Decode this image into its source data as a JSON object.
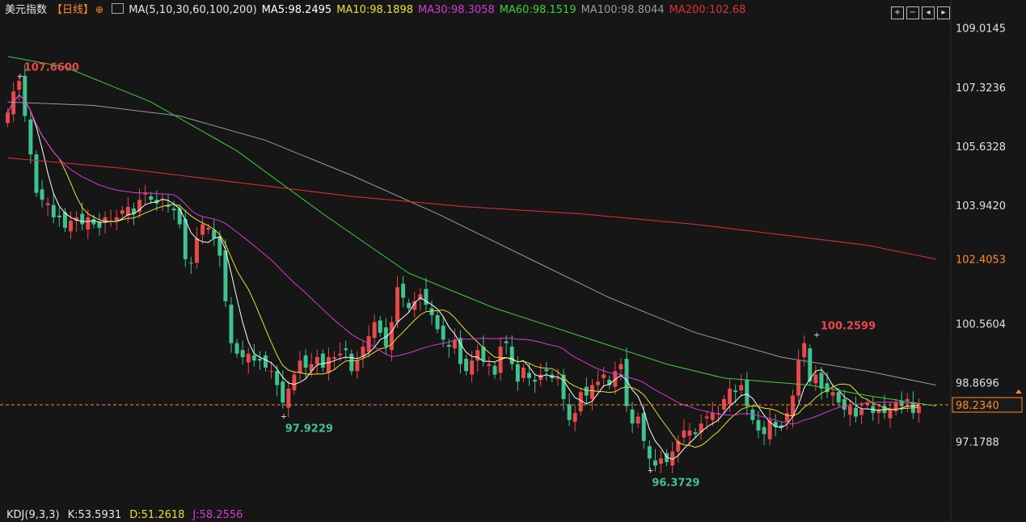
{
  "header": {
    "title": "美元指数",
    "period": "【日线】",
    "add_symbol": "⊕",
    "ma_label": "MA(5,10,30,60,100,200)",
    "ma_values": [
      {
        "label": "MA5:98.2495",
        "color": "#ffffff"
      },
      {
        "label": "MA10:98.1898",
        "color": "#e8e030"
      },
      {
        "label": "MA30:98.3058",
        "color": "#d63ad6"
      },
      {
        "label": "MA60:98.1519",
        "color": "#3bd13b"
      },
      {
        "label": "MA100:98.8044",
        "color": "#9a9a9a"
      },
      {
        "label": "MA200:102.68",
        "color": "#e03030"
      }
    ]
  },
  "toolbar": {
    "buttons": [
      "zoom-in",
      "zoom-out",
      "prev",
      "next"
    ]
  },
  "kdj": {
    "label": "KDJ(9,3,3)",
    "k": "K:53.5931",
    "d": "D:51.2618",
    "j": "J:58.2556"
  },
  "chart_data": {
    "type": "candlestick",
    "y_axis_ticks": [
      "109.0145",
      "107.3236",
      "105.6328",
      "103.9420",
      "102.4053",
      "100.5604",
      "98.8696",
      "98.2340",
      "97.1788"
    ],
    "ylim": [
      95.6,
      109.4
    ],
    "current_price": 98.234,
    "current_price_label": "98.2340",
    "hover_price_label": "102.4053",
    "annotations": [
      {
        "text": "107.6600",
        "index": 2,
        "value": 107.66,
        "color": "#e64a4a"
      },
      {
        "text": "97.9229",
        "index": 48,
        "value": 97.9229,
        "color": "#3ec28f"
      },
      {
        "text": "96.3729",
        "index": 112,
        "value": 96.3729,
        "color": "#3ec28f"
      },
      {
        "text": "100.2599",
        "index": 141,
        "value": 100.2599,
        "color": "#e64a4a"
      }
    ],
    "up_color": "#e64a4a",
    "down_color": "#3ec28f",
    "ma_colors": {
      "ma5": "#ffffff",
      "ma10": "#e8e030",
      "ma30": "#d63ad6",
      "ma60": "#3bd13b",
      "ma100": "#9a9a9a",
      "ma200": "#e03030"
    },
    "closes": [
      106.6,
      107.2,
      107.5,
      106.5,
      105.4,
      104.3,
      104.1,
      104.0,
      103.6,
      103.6,
      103.3,
      103.5,
      103.6,
      103.4,
      103.6,
      103.4,
      103.3,
      103.6,
      103.5,
      103.6,
      103.8,
      103.9,
      103.7,
      104.1,
      104.3,
      104.1,
      104.0,
      104.1,
      103.9,
      103.8,
      103.4,
      102.4,
      102.3,
      103.0,
      103.4,
      103.3,
      103.0,
      102.5,
      101.2,
      100.0,
      99.7,
      99.6,
      99.7,
      99.5,
      99.5,
      99.3,
      99.2,
      98.8,
      98.3,
      98.7,
      99.1,
      99.5,
      99.3,
      99.4,
      99.6,
      99.3,
      99.6,
      99.6,
      99.7,
      99.8,
      99.2,
      99.5,
      99.9,
      100.2,
      100.6,
      100.3,
      99.9,
      100.6,
      101.6,
      101.3,
      101.0,
      101.2,
      101.4,
      101.1,
      100.8,
      100.4,
      100.1,
      99.9,
      100.1,
      99.4,
      99.2,
      99.5,
      99.8,
      99.5,
      99.4,
      99.1,
      99.9,
      100.0,
      99.4,
      98.9,
      99.3,
      99.0,
      98.9,
      99.1,
      99.2,
      99.0,
      99.0,
      98.4,
      97.8,
      98.0,
      98.6,
      98.5,
      98.8,
      98.9,
      99.1,
      98.8,
      99.2,
      99.4,
      98.2,
      97.7,
      97.9,
      97.2,
      96.7,
      96.5,
      96.7,
      96.6,
      96.9,
      97.2,
      97.5,
      97.5,
      97.4,
      97.7,
      97.9,
      98.0,
      98.0,
      98.4,
      98.7,
      98.6,
      98.8,
      98.2,
      97.8,
      97.5,
      97.4,
      97.8,
      97.6,
      97.6,
      98.0,
      98.5,
      99.5,
      100.0,
      98.9,
      99.1,
      98.7,
      98.6,
      98.6,
      98.3,
      98.1,
      98.2,
      97.9,
      98.1,
      98.3,
      98.0,
      98.1,
      98.0,
      98.1,
      98.3,
      98.2,
      98.4,
      98.0,
      98.2
    ]
  }
}
